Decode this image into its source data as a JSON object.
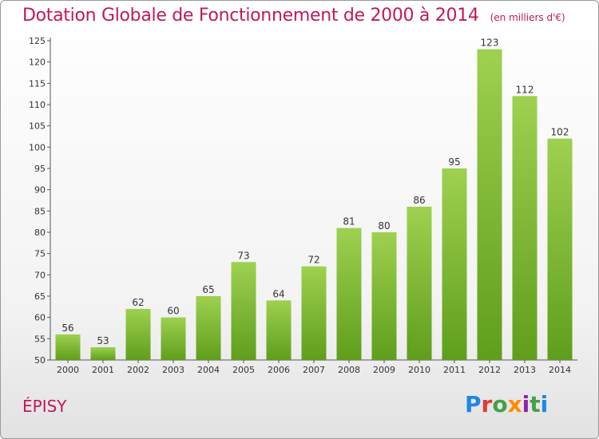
{
  "header": {
    "title": "Dotation Globale de Fonctionnement de 2000 à 2014",
    "subtitle": "(en milliers d'€)"
  },
  "footer": {
    "commune": "ÉPISY",
    "logo_letters": [
      "P",
      "r",
      "o",
      "x",
      "i",
      "t",
      "i"
    ],
    "logo_colors": [
      "#1e88e5",
      "#e53935",
      "#43a047",
      "#fb8c00",
      "#8e24aa",
      "#43a047",
      "#1e88e5"
    ]
  },
  "chart_data": {
    "type": "bar",
    "categories": [
      "2000",
      "2001",
      "2002",
      "2003",
      "2004",
      "2005",
      "2006",
      "2007",
      "2008",
      "2009",
      "2010",
      "2011",
      "2012",
      "2013",
      "2014"
    ],
    "values": [
      56,
      53,
      62,
      60,
      65,
      73,
      64,
      72,
      81,
      80,
      86,
      95,
      123,
      112,
      102
    ],
    "ylim": [
      50,
      125
    ],
    "yticks": [
      50,
      55,
      60,
      65,
      70,
      75,
      80,
      85,
      90,
      95,
      100,
      105,
      110,
      115,
      120,
      125
    ],
    "bar_color_top": "#9ed14f",
    "bar_color_bottom": "#5f9e1c",
    "grid": false
  }
}
